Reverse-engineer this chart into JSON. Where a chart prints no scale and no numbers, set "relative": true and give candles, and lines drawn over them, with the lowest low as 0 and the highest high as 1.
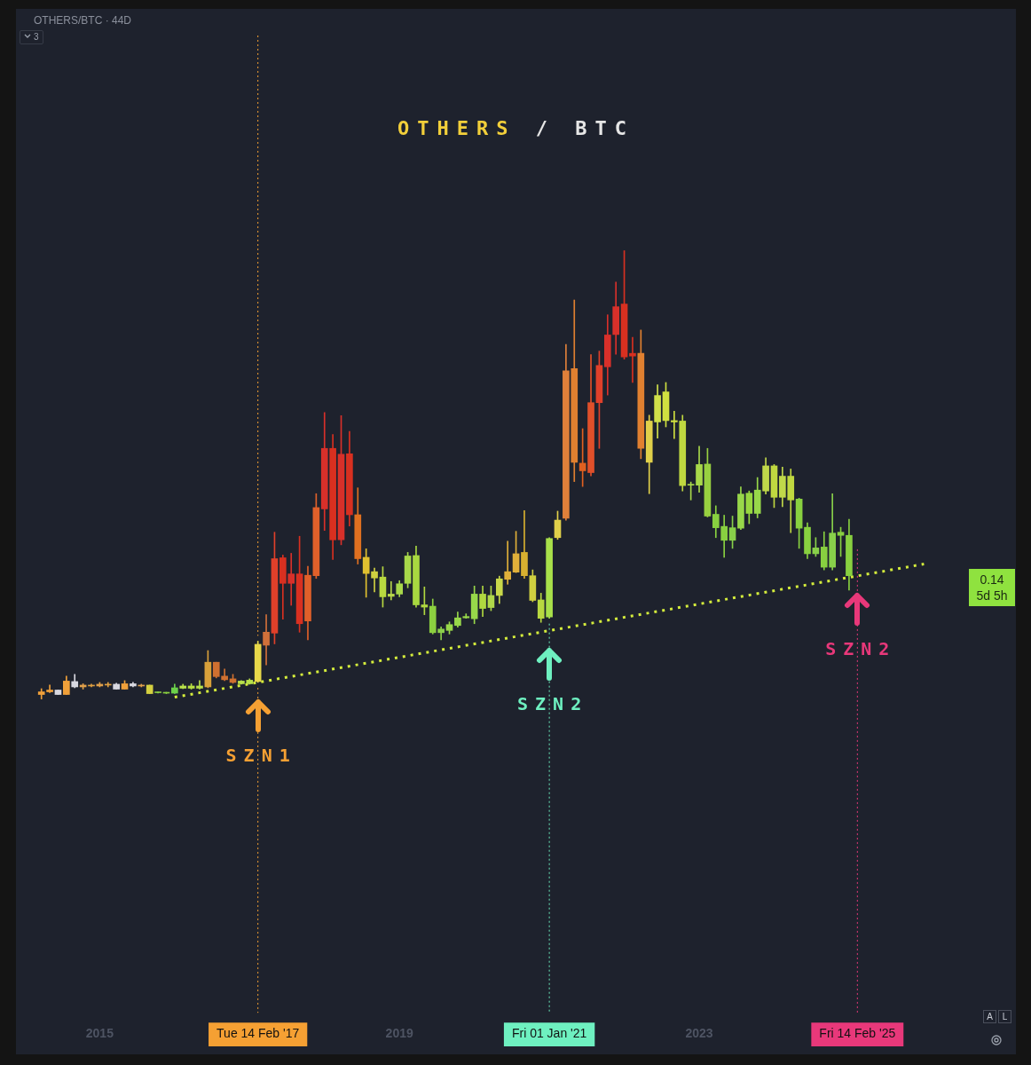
{
  "chart_data": {
    "type": "candlestick",
    "title": "OTHERS / BTC",
    "subtitle": "OTHERS/BTC · 44D",
    "relative": true,
    "categories": [
      null,
      null,
      null,
      null,
      null,
      null,
      null,
      "2015",
      null,
      null,
      null,
      null,
      null,
      null,
      null,
      null,
      null,
      null,
      null,
      null,
      null,
      null,
      null,
      null,
      null,
      null,
      "Tue 14 Feb '17",
      null,
      null,
      null,
      null,
      null,
      null,
      null,
      null,
      null,
      null,
      null,
      null,
      null,
      null,
      null,
      null,
      "2019",
      null,
      null,
      null,
      null,
      null,
      null,
      null,
      null,
      null,
      null,
      null,
      null,
      null,
      null,
      null,
      null,
      null,
      "Fri 01 Jan '21",
      null,
      null,
      null,
      null,
      null,
      null,
      null,
      null,
      null,
      null,
      null,
      null,
      null,
      null,
      null,
      null,
      null,
      "2023",
      null,
      null,
      null,
      null,
      null,
      null,
      null,
      null,
      null,
      null,
      null,
      null,
      null,
      null,
      null,
      null,
      null,
      null,
      "Fri 14 Feb '25",
      null,
      null,
      null,
      null,
      null,
      null,
      null,
      null,
      null,
      null,
      null,
      null,
      null
    ],
    "ohlc": [
      [
        0.01,
        0.023,
        0,
        0.016
      ],
      [
        0.016,
        0.031,
        0.014,
        0.02
      ],
      [
        0.02,
        0.02,
        0.01,
        0.01
      ],
      [
        0.01,
        0.051,
        0.01,
        0.04
      ],
      [
        0.039,
        0.055,
        0.025,
        0.027
      ],
      [
        0.027,
        0.034,
        0.022,
        0.031
      ],
      [
        0.031,
        0.033,
        0.027,
        0.029
      ],
      [
        0.029,
        0.037,
        0.027,
        0.033
      ],
      [
        0.033,
        0.037,
        0.027,
        0.031
      ],
      [
        0.033,
        0.035,
        0.022,
        0.022
      ],
      [
        0.022,
        0.041,
        0.022,
        0.034
      ],
      [
        0.034,
        0.037,
        0.027,
        0.029
      ],
      [
        0.029,
        0.033,
        0.027,
        0.031
      ],
      [
        0.031,
        0.031,
        0.012,
        0.012
      ],
      [
        0.015,
        0.016,
        0.013,
        0.014
      ],
      [
        0.014,
        0.015,
        0.012,
        0.013
      ],
      [
        0.013,
        0.033,
        0.012,
        0.025
      ],
      [
        0.024,
        0.033,
        0.023,
        0.029
      ],
      [
        0.029,
        0.034,
        0.022,
        0.024
      ],
      [
        0.024,
        0.041,
        0.022,
        0.029
      ],
      [
        0.027,
        0.108,
        0.025,
        0.082
      ],
      [
        0.082,
        0.082,
        0.047,
        0.05
      ],
      [
        0.051,
        0.067,
        0.041,
        0.043
      ],
      [
        0.045,
        0.055,
        0.035,
        0.037
      ],
      [
        0.034,
        0.041,
        0.033,
        0.04
      ],
      [
        0.034,
        0.045,
        0.033,
        0.042
      ],
      [
        0.039,
        0.129,
        0.037,
        0.122
      ],
      [
        0.12,
        0.188,
        0.076,
        0.149
      ],
      [
        0.147,
        0.372,
        0.123,
        0.313
      ],
      [
        0.315,
        0.321,
        0.178,
        0.258
      ],
      [
        0.258,
        0.325,
        0.209,
        0.279
      ],
      [
        0.279,
        0.363,
        0.149,
        0.168
      ],
      [
        0.174,
        0.296,
        0.132,
        0.276
      ],
      [
        0.275,
        0.458,
        0.269,
        0.427
      ],
      [
        0.424,
        0.639,
        0.376,
        0.559
      ],
      [
        0.559,
        0.59,
        0.311,
        0.355
      ],
      [
        0.355,
        0.632,
        0.344,
        0.546
      ],
      [
        0.547,
        0.597,
        0.386,
        0.411
      ],
      [
        0.411,
        0.471,
        0.301,
        0.313
      ],
      [
        0.316,
        0.335,
        0.227,
        0.28
      ],
      [
        0.284,
        0.292,
        0.239,
        0.27
      ],
      [
        0.272,
        0.295,
        0.205,
        0.228
      ],
      [
        0.229,
        0.262,
        0.221,
        0.234
      ],
      [
        0.234,
        0.264,
        0.228,
        0.257
      ],
      [
        0.258,
        0.327,
        0.248,
        0.319
      ],
      [
        0.32,
        0.341,
        0.205,
        0.21
      ],
      [
        0.21,
        0.25,
        0.188,
        0.205
      ],
      [
        0.207,
        0.223,
        0.145,
        0.148
      ],
      [
        0.148,
        0.161,
        0.132,
        0.156
      ],
      [
        0.153,
        0.172,
        0.145,
        0.166
      ],
      [
        0.164,
        0.194,
        0.16,
        0.181
      ],
      [
        0.181,
        0.19,
        0.18,
        0.184
      ],
      [
        0.179,
        0.252,
        0.168,
        0.234
      ],
      [
        0.234,
        0.252,
        0.184,
        0.202
      ],
      [
        0.204,
        0.252,
        0.197,
        0.231
      ],
      [
        0.231,
        0.274,
        0.213,
        0.268
      ],
      [
        0.267,
        0.352,
        0.256,
        0.284
      ],
      [
        0.283,
        0.374,
        0.282,
        0.324
      ],
      [
        0.327,
        0.42,
        0.269,
        0.275
      ],
      [
        0.275,
        0.288,
        0.217,
        0.22
      ],
      [
        0.221,
        0.236,
        0.171,
        0.18
      ],
      [
        0.183,
        0.36,
        0.18,
        0.358
      ],
      [
        0.36,
        0.419,
        0.356,
        0.399
      ],
      [
        0.403,
        0.791,
        0.399,
        0.732
      ],
      [
        0.737,
        0.89,
        0.485,
        0.528
      ],
      [
        0.526,
        0.603,
        0.474,
        0.509
      ],
      [
        0.505,
        0.768,
        0.498,
        0.661
      ],
      [
        0.661,
        0.776,
        0.559,
        0.744
      ],
      [
        0.741,
        0.857,
        0.678,
        0.812
      ],
      [
        0.813,
        0.93,
        0.769,
        0.875
      ],
      [
        0.881,
        1,
        0.758,
        0.763
      ],
      [
        0.771,
        0.807,
        0.706,
        0.765
      ],
      [
        0.771,
        0.823,
        0.536,
        0.559
      ],
      [
        0.528,
        0.633,
        0.458,
        0.62
      ],
      [
        0.618,
        0.701,
        0.582,
        0.677
      ],
      [
        0.685,
        0.706,
        0.607,
        0.621
      ],
      [
        0.621,
        0.642,
        0.581,
        0.618
      ],
      [
        0.62,
        0.633,
        0.464,
        0.476
      ],
      [
        0.477,
        0.484,
        0.444,
        0.479
      ],
      [
        0.477,
        0.564,
        0.461,
        0.523
      ],
      [
        0.524,
        0.559,
        0.406,
        0.408
      ],
      [
        0.412,
        0.431,
        0.36,
        0.382
      ],
      [
        0.385,
        0.41,
        0.316,
        0.354
      ],
      [
        0.354,
        0.408,
        0.336,
        0.382
      ],
      [
        0.381,
        0.473,
        0.378,
        0.457
      ],
      [
        0.459,
        0.464,
        0.391,
        0.414
      ],
      [
        0.414,
        0.494,
        0.404,
        0.466
      ],
      [
        0.464,
        0.538,
        0.457,
        0.52
      ],
      [
        0.52,
        0.523,
        0.427,
        0.45
      ],
      [
        0.45,
        0.517,
        0.429,
        0.497
      ],
      [
        0.497,
        0.513,
        0.371,
        0.444
      ],
      [
        0.446,
        0.448,
        0.336,
        0.381
      ],
      [
        0.383,
        0.393,
        0.313,
        0.324
      ],
      [
        0.324,
        0.36,
        0.318,
        0.337
      ],
      [
        0.339,
        0.373,
        0.288,
        0.294
      ],
      [
        0.294,
        0.458,
        0.288,
        0.37
      ],
      [
        0.372,
        0.383,
        0.318,
        0.365
      ],
      [
        0.365,
        0.401,
        0.243,
        0.275
      ],
      null,
      null,
      null,
      null,
      null,
      null,
      null,
      null,
      null,
      null,
      null,
      null,
      null,
      null
    ],
    "colors": [
      "#f0a03a",
      "#f0a03a",
      "#d8d8e0",
      "#f0a03a",
      "#d8d8e0",
      "#e0a04a",
      "#e0a040",
      "#e0a04a",
      "#e0a040",
      "#d8d8e0",
      "#f0a03a",
      "#d8d8e0",
      "#e0a04a",
      "#d4d040",
      "#8ad040",
      "#8ad040",
      "#6cd04a",
      "#b8e04a",
      "#b8e040",
      "#b8e04a",
      "#d8a03a",
      "#d07030",
      "#d07030",
      "#d07030",
      "#b8e04a",
      "#b8e04a",
      "#e8d84a",
      "#d0703a",
      "#e0402a",
      "#d83020",
      "#d8302a",
      "#d83020",
      "#e0602a",
      "#e0602a",
      "#d8302a",
      "#d83020",
      "#d8302a",
      "#d83020",
      "#e07020",
      "#e0c030",
      "#d0d040",
      "#b8d840",
      "#b8d84a",
      "#a8d84a",
      "#a8d84a",
      "#a8d840",
      "#b0d840",
      "#8cd040",
      "#8cd04a",
      "#98d84a",
      "#98d84a",
      "#98d84a",
      "#98d84a",
      "#b0d840",
      "#b0d84a",
      "#c8d84a",
      "#e0b03a",
      "#e0b03a",
      "#d8b030",
      "#d0d040",
      "#b8d840",
      "#a8e04a",
      "#e0d04a",
      "#e0803a",
      "#e08030",
      "#e06020",
      "#e0502a",
      "#e0402a",
      "#d8302a",
      "#d8302a",
      "#d83020",
      "#d83020",
      "#e08030",
      "#e0d04a",
      "#d0e04a",
      "#d0e040",
      "#d0e040",
      "#c0d840",
      "#a8d84a",
      "#a8d84a",
      "#98d040",
      "#88d040",
      "#88d040",
      "#88d04a",
      "#98d84a",
      "#98d840",
      "#98d84a",
      "#c0d84a",
      "#c0d840",
      "#c0d84a",
      "#c0d840",
      "#88d040",
      "#88d040",
      "#88d04a",
      "#88d040",
      "#88d04a",
      "#88d040",
      "#88d040",
      null,
      null,
      null,
      null,
      null,
      null,
      null,
      null,
      null,
      null,
      null,
      null,
      null,
      null
    ],
    "series": [
      {
        "type": "line",
        "color": "#d4ec3c",
        "line_style": "dotted",
        "values": [
          null,
          null,
          null,
          null,
          null,
          null,
          null,
          null,
          null,
          null,
          null,
          null,
          null,
          null,
          null,
          null,
          0.004,
          null,
          null,
          null,
          null,
          null,
          null,
          null,
          null,
          null,
          null,
          null,
          null,
          null,
          null,
          null,
          null,
          null,
          null,
          null,
          null,
          null,
          null,
          null,
          null,
          null,
          null,
          null,
          null,
          null,
          null,
          null,
          null,
          null,
          null,
          null,
          null,
          null,
          null,
          null,
          null,
          null,
          null,
          null,
          null,
          null,
          null,
          null,
          null,
          null,
          null,
          null,
          null,
          null,
          null,
          null,
          null,
          null,
          null,
          null,
          null,
          null,
          null,
          null,
          null,
          null,
          null,
          null,
          null,
          null,
          null,
          null,
          null,
          null,
          null,
          null,
          null,
          null,
          null,
          null,
          null,
          null,
          null,
          null,
          null,
          null,
          null,
          null,
          null,
          null,
          0.301,
          null,
          null,
          null,
          null,
          null
        ]
      }
    ],
    "ref_lines": [
      {
        "axis": "x",
        "value": "Tue 14 Feb '17",
        "color": "#f5a033",
        "line_style": "dotted"
      },
      {
        "axis": "x",
        "value": "Fri 01 Jan '21",
        "color": "#6ef0c0",
        "line_style": "dotted"
      },
      {
        "axis": "x",
        "value": "Fri 14 Feb '25",
        "color": "#e8387a",
        "line_style": "dotted"
      }
    ],
    "annotations": [
      "SZN1",
      "SZN2",
      "SZN2",
      "3",
      "0.14",
      "5d 5h",
      "A",
      "L"
    ]
  }
}
